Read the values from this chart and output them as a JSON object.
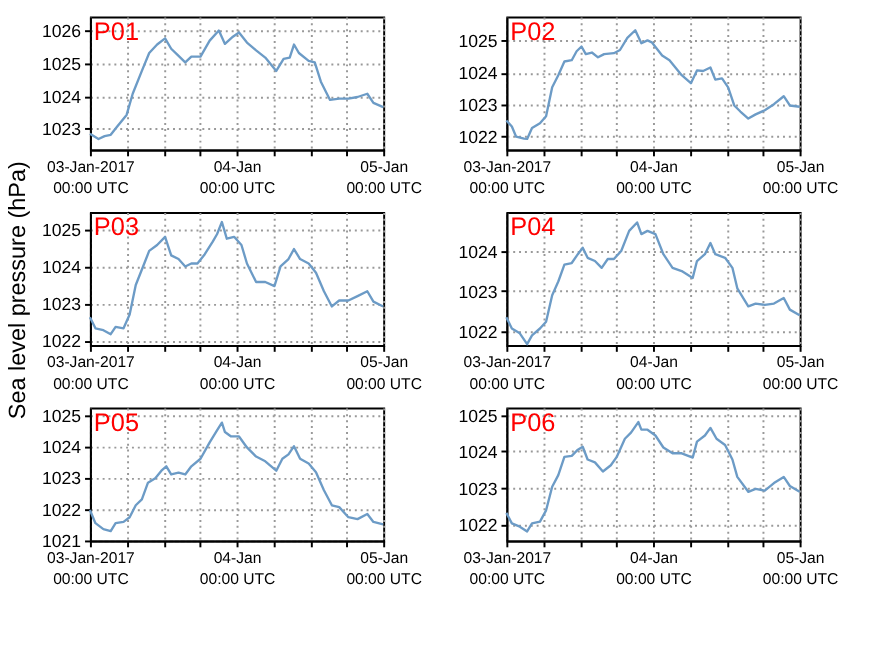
{
  "chart_data": [
    {
      "type": "line",
      "title": "P01",
      "color": "#6c9bc6",
      "grid": true,
      "xlim": [
        "2017-01-03T00:00",
        "2017-01-05T00:00"
      ],
      "ylim": [
        1022.35,
        1026.43
      ],
      "yticks": [
        1023,
        1024,
        1025,
        1026
      ],
      "xticks": [
        {
          "value": "2017-01-03T00:00",
          "label": "03-Jan-2017\n00:00 UTC"
        },
        {
          "value": "2017-01-03T06:00",
          "label": null
        },
        {
          "value": "2017-01-03T12:00",
          "label": null
        },
        {
          "value": "2017-01-03T18:00",
          "label": null
        },
        {
          "value": "2017-01-04T00:00",
          "label": "04-Jan\n00:00 UTC"
        },
        {
          "value": "2017-01-04T06:00",
          "label": null
        },
        {
          "value": "2017-01-04T12:00",
          "label": null
        },
        {
          "value": "2017-01-04T18:00",
          "label": null
        },
        {
          "value": "2017-01-05T00:00",
          "label": "05-Jan\n00:00 UTC"
        }
      ],
      "x": [
        "2017-01-03T00:00",
        "2017-01-03T01:24",
        "2017-01-03T02:24",
        "2017-01-03T03:24",
        "2017-01-03T04:24",
        "2017-01-03T06:00",
        "2017-01-03T07:00",
        "2017-01-03T08:30",
        "2017-01-03T09:42",
        "2017-01-03T11:00",
        "2017-01-03T12:18",
        "2017-01-03T13:18",
        "2017-01-03T14:18",
        "2017-01-03T15:36",
        "2017-01-03T16:36",
        "2017-01-03T18:06",
        "2017-01-03T19:36",
        "2017-01-03T21:06",
        "2017-01-03T22:06",
        "2017-01-03T23:24",
        "2017-01-04T00:24",
        "2017-01-04T01:42",
        "2017-01-04T03:12",
        "2017-01-04T04:42",
        "2017-01-04T06:30",
        "2017-01-04T07:42",
        "2017-01-04T08:42",
        "2017-01-04T09:24",
        "2017-01-04T10:12",
        "2017-01-04T11:48",
        "2017-01-04T12:48",
        "2017-01-04T13:48",
        "2017-01-04T15:18",
        "2017-01-04T16:48",
        "2017-01-04T18:18",
        "2017-01-04T19:48",
        "2017-01-04T21:24",
        "2017-01-04T22:24",
        "2017-01-05T00:00"
      ],
      "values": [
        1022.83,
        1022.67,
        1022.76,
        1022.8,
        1023.04,
        1023.41,
        1024.06,
        1024.76,
        1025.31,
        1025.57,
        1025.76,
        1025.44,
        1025.26,
        1025.02,
        1025.2,
        1025.2,
        1025.69,
        1026.0,
        1025.59,
        1025.81,
        1025.94,
        1025.63,
        1025.39,
        1025.17,
        1024.76,
        1025.13,
        1025.17,
        1025.57,
        1025.31,
        1025.07,
        1025.02,
        1024.43,
        1023.87,
        1023.91,
        1023.91,
        1023.96,
        1024.06,
        1023.78,
        1023.65
      ]
    },
    {
      "type": "line",
      "title": "P02",
      "color": "#6c9bc6",
      "grid": true,
      "xlim": [
        "2017-01-03T00:00",
        "2017-01-05T00:00"
      ],
      "ylim": [
        1021.58,
        1025.75
      ],
      "yticks": [
        1022,
        1023,
        1024,
        1025
      ],
      "xticks": [
        {
          "value": "2017-01-03T00:00",
          "label": "03-Jan-2017\n00:00 UTC"
        },
        {
          "value": "2017-01-03T06:00",
          "label": null
        },
        {
          "value": "2017-01-03T12:00",
          "label": null
        },
        {
          "value": "2017-01-03T18:00",
          "label": null
        },
        {
          "value": "2017-01-04T00:00",
          "label": "04-Jan\n00:00 UTC"
        },
        {
          "value": "2017-01-04T06:00",
          "label": null
        },
        {
          "value": "2017-01-04T12:00",
          "label": null
        },
        {
          "value": "2017-01-04T18:00",
          "label": null
        },
        {
          "value": "2017-01-05T00:00",
          "label": "05-Jan\n00:00 UTC"
        }
      ],
      "x": [
        "2017-01-03T00:00",
        "2017-01-03T00:54",
        "2017-01-03T01:36",
        "2017-01-03T02:54",
        "2017-01-03T03:24",
        "2017-01-03T04:12",
        "2017-01-03T05:30",
        "2017-01-03T06:30",
        "2017-01-03T07:30",
        "2017-01-03T08:30",
        "2017-01-03T09:30",
        "2017-01-03T10:42",
        "2017-01-03T11:30",
        "2017-01-03T12:18",
        "2017-01-03T13:00",
        "2017-01-03T14:00",
        "2017-01-03T15:00",
        "2017-01-03T16:00",
        "2017-01-03T17:36",
        "2017-01-03T18:36",
        "2017-01-03T19:48",
        "2017-01-03T21:06",
        "2017-01-03T22:06",
        "2017-01-03T23:06",
        "2017-01-03T23:48",
        "2017-01-04T01:30",
        "2017-01-04T02:42",
        "2017-01-04T04:42",
        "2017-01-04T06:12",
        "2017-01-04T07:12",
        "2017-01-04T08:12",
        "2017-01-04T09:24",
        "2017-01-04T10:12",
        "2017-01-04T11:18",
        "2017-01-04T12:18",
        "2017-01-04T13:18",
        "2017-01-04T14:18",
        "2017-01-04T15:36",
        "2017-01-04T16:48",
        "2017-01-04T18:18",
        "2017-01-04T19:48",
        "2017-01-04T21:24",
        "2017-01-04T22:24",
        "2017-01-05T00:00"
      ],
      "values": [
        1022.49,
        1022.3,
        1021.98,
        1021.92,
        1021.91,
        1022.25,
        1022.4,
        1022.62,
        1023.53,
        1023.91,
        1024.34,
        1024.38,
        1024.66,
        1024.81,
        1024.57,
        1024.62,
        1024.47,
        1024.57,
        1024.6,
        1024.7,
        1025.08,
        1025.32,
        1024.91,
        1025.0,
        1024.94,
        1024.53,
        1024.38,
        1023.91,
        1023.66,
        1024.06,
        1024.04,
        1024.15,
        1023.77,
        1023.81,
        1023.53,
        1022.96,
        1022.77,
        1022.55,
        1022.68,
        1022.81,
        1023.0,
        1023.25,
        1022.96,
        1022.92
      ]
    },
    {
      "type": "line",
      "title": "P03",
      "ylabel": "Sea level pressure (hPa)",
      "color": "#6c9bc6",
      "grid": true,
      "xlim": [
        "2017-01-03T00:00",
        "2017-01-05T00:00"
      ],
      "ylim": [
        1021.88,
        1025.47
      ],
      "yticks": [
        1022,
        1023,
        1024,
        1025
      ],
      "xticks": [
        {
          "value": "2017-01-03T00:00",
          "label": "03-Jan-2017\n00:00 UTC"
        },
        {
          "value": "2017-01-03T06:00",
          "label": null
        },
        {
          "value": "2017-01-03T12:00",
          "label": null
        },
        {
          "value": "2017-01-03T18:00",
          "label": null
        },
        {
          "value": "2017-01-04T00:00",
          "label": "04-Jan\n00:00 UTC"
        },
        {
          "value": "2017-01-04T06:00",
          "label": null
        },
        {
          "value": "2017-01-04T12:00",
          "label": null
        },
        {
          "value": "2017-01-04T18:00",
          "label": null
        },
        {
          "value": "2017-01-05T00:00",
          "label": "05-Jan\n00:00 UTC"
        }
      ],
      "x": [
        "2017-01-03T00:00",
        "2017-01-03T00:54",
        "2017-01-03T02:12",
        "2017-01-03T03:24",
        "2017-01-03T04:12",
        "2017-01-03T05:30",
        "2017-01-03T06:30",
        "2017-01-03T07:30",
        "2017-01-03T08:42",
        "2017-01-03T09:42",
        "2017-01-03T11:00",
        "2017-01-03T12:18",
        "2017-01-03T13:18",
        "2017-01-03T14:30",
        "2017-01-03T15:36",
        "2017-01-03T16:36",
        "2017-01-03T17:36",
        "2017-01-03T18:48",
        "2017-01-03T20:06",
        "2017-01-03T20:48",
        "2017-01-03T21:36",
        "2017-01-03T22:24",
        "2017-01-03T23:36",
        "2017-01-04T00:48",
        "2017-01-04T01:42",
        "2017-01-04T03:12",
        "2017-01-04T04:42",
        "2017-01-04T06:12",
        "2017-01-04T07:12",
        "2017-01-04T08:30",
        "2017-01-04T09:24",
        "2017-01-04T10:24",
        "2017-01-04T11:48",
        "2017-01-04T13:00",
        "2017-01-04T14:18",
        "2017-01-04T15:36",
        "2017-01-04T16:48",
        "2017-01-04T18:18",
        "2017-01-04T19:48",
        "2017-01-04T21:24",
        "2017-01-04T22:24",
        "2017-01-05T00:00"
      ],
      "values": [
        1022.63,
        1022.33,
        1022.28,
        1022.17,
        1022.37,
        1022.33,
        1022.7,
        1023.5,
        1024.0,
        1024.42,
        1024.58,
        1024.8,
        1024.3,
        1024.2,
        1024.0,
        1024.08,
        1024.08,
        1024.33,
        1024.67,
        1024.87,
        1025.2,
        1024.75,
        1024.8,
        1024.58,
        1024.08,
        1023.58,
        1023.58,
        1023.47,
        1024.0,
        1024.2,
        1024.47,
        1024.2,
        1024.08,
        1023.83,
        1023.33,
        1022.92,
        1023.08,
        1023.08,
        1023.2,
        1023.33,
        1023.05,
        1022.92
      ]
    },
    {
      "type": "line",
      "title": "P04",
      "color": "#6c9bc6",
      "grid": true,
      "xlim": [
        "2017-01-03T00:00",
        "2017-01-05T00:00"
      ],
      "ylim": [
        1021.66,
        1024.97
      ],
      "yticks": [
        1022,
        1023,
        1024
      ],
      "xticks": [
        {
          "value": "2017-01-03T00:00",
          "label": "03-Jan-2017\n00:00 UTC"
        },
        {
          "value": "2017-01-03T06:00",
          "label": null
        },
        {
          "value": "2017-01-03T12:00",
          "label": null
        },
        {
          "value": "2017-01-03T18:00",
          "label": null
        },
        {
          "value": "2017-01-04T00:00",
          "label": "04-Jan\n00:00 UTC"
        },
        {
          "value": "2017-01-04T06:00",
          "label": null
        },
        {
          "value": "2017-01-04T12:00",
          "label": null
        },
        {
          "value": "2017-01-04T18:00",
          "label": null
        },
        {
          "value": "2017-01-05T00:00",
          "label": "05-Jan\n00:00 UTC"
        }
      ],
      "x": [
        "2017-01-03T00:00",
        "2017-01-03T00:54",
        "2017-01-03T02:12",
        "2017-01-03T03:24",
        "2017-01-03T04:12",
        "2017-01-03T05:30",
        "2017-01-03T06:30",
        "2017-01-03T07:30",
        "2017-01-03T08:30",
        "2017-01-03T09:30",
        "2017-01-03T10:42",
        "2017-01-03T11:42",
        "2017-01-03T12:30",
        "2017-01-03T13:18",
        "2017-01-03T14:30",
        "2017-01-03T15:36",
        "2017-01-03T16:36",
        "2017-01-03T17:36",
        "2017-01-03T18:48",
        "2017-01-03T20:06",
        "2017-01-03T21:24",
        "2017-01-03T22:06",
        "2017-01-03T23:06",
        "2017-01-04T00:24",
        "2017-01-04T01:42",
        "2017-01-04T03:12",
        "2017-01-04T04:42",
        "2017-01-04T06:30",
        "2017-01-04T07:12",
        "2017-01-04T08:30",
        "2017-01-04T09:24",
        "2017-01-04T10:12",
        "2017-01-04T11:48",
        "2017-01-04T13:00",
        "2017-01-04T13:48",
        "2017-01-04T15:36",
        "2017-01-04T16:48",
        "2017-01-04T18:18",
        "2017-01-04T19:48",
        "2017-01-04T21:24",
        "2017-01-04T22:24",
        "2017-01-05T00:00"
      ],
      "values": [
        1022.35,
        1022.07,
        1021.95,
        1021.68,
        1021.9,
        1022.07,
        1022.24,
        1022.9,
        1023.24,
        1023.66,
        1023.7,
        1023.92,
        1024.08,
        1023.83,
        1023.75,
        1023.58,
        1023.8,
        1023.8,
        1024.0,
        1024.5,
        1024.71,
        1024.42,
        1024.5,
        1024.42,
        1023.92,
        1023.58,
        1023.5,
        1023.33,
        1023.75,
        1023.92,
        1024.2,
        1023.92,
        1023.83,
        1023.58,
        1023.07,
        1022.62,
        1022.69,
        1022.66,
        1022.69,
        1022.83,
        1022.54,
        1022.4
      ]
    },
    {
      "type": "line",
      "title": "P05",
      "color": "#6c9bc6",
      "grid": true,
      "xlim": [
        "2017-01-03T00:00",
        "2017-01-05T00:00"
      ],
      "ylim": [
        1021.0,
        1025.23
      ],
      "yticks": [
        1021,
        1022,
        1023,
        1024,
        1025
      ],
      "xticks": [
        {
          "value": "2017-01-03T00:00",
          "label": "03-Jan-2017\n00:00 UTC"
        },
        {
          "value": "2017-01-03T06:00",
          "label": null
        },
        {
          "value": "2017-01-03T12:00",
          "label": null
        },
        {
          "value": "2017-01-03T18:00",
          "label": null
        },
        {
          "value": "2017-01-04T00:00",
          "label": "04-Jan\n00:00 UTC"
        },
        {
          "value": "2017-01-04T06:00",
          "label": null
        },
        {
          "value": "2017-01-04T12:00",
          "label": null
        },
        {
          "value": "2017-01-04T18:00",
          "label": null
        },
        {
          "value": "2017-01-05T00:00",
          "label": "05-Jan\n00:00 UTC"
        }
      ],
      "x": [
        "2017-01-03T00:00",
        "2017-01-03T00:54",
        "2017-01-03T02:12",
        "2017-01-03T03:24",
        "2017-01-03T04:12",
        "2017-01-03T05:30",
        "2017-01-03T06:30",
        "2017-01-03T07:30",
        "2017-01-03T08:30",
        "2017-01-03T09:30",
        "2017-01-03T10:42",
        "2017-01-03T11:42",
        "2017-01-03T12:30",
        "2017-01-03T13:18",
        "2017-01-03T14:30",
        "2017-01-03T15:36",
        "2017-01-03T16:36",
        "2017-01-03T18:06",
        "2017-01-03T19:36",
        "2017-01-03T20:48",
        "2017-01-03T21:36",
        "2017-01-03T22:06",
        "2017-01-03T23:06",
        "2017-01-04T00:24",
        "2017-01-04T01:42",
        "2017-01-04T03:12",
        "2017-01-04T04:42",
        "2017-01-04T06:30",
        "2017-01-04T07:30",
        "2017-01-04T08:30",
        "2017-01-04T09:24",
        "2017-01-04T10:24",
        "2017-01-04T11:48",
        "2017-01-04T13:00",
        "2017-01-04T14:18",
        "2017-01-04T15:36",
        "2017-01-04T16:48",
        "2017-01-04T18:18",
        "2017-01-04T19:48",
        "2017-01-04T21:24",
        "2017-01-04T22:24",
        "2017-01-05T00:00"
      ],
      "values": [
        1021.97,
        1021.55,
        1021.36,
        1021.3,
        1021.55,
        1021.59,
        1021.74,
        1022.12,
        1022.31,
        1022.84,
        1022.98,
        1023.22,
        1023.36,
        1023.1,
        1023.16,
        1023.1,
        1023.36,
        1023.6,
        1024.12,
        1024.5,
        1024.75,
        1024.45,
        1024.31,
        1024.31,
        1023.96,
        1023.67,
        1023.52,
        1023.22,
        1023.6,
        1023.74,
        1024.0,
        1023.6,
        1023.45,
        1023.17,
        1022.6,
        1022.12,
        1022.06,
        1021.74,
        1021.68,
        1021.84,
        1021.59,
        1021.51
      ]
    },
    {
      "type": "line",
      "title": "P06",
      "color": "#6c9bc6",
      "grid": true,
      "xlim": [
        "2017-01-03T00:00",
        "2017-01-05T00:00"
      ],
      "ylim": [
        1021.55,
        1025.21
      ],
      "yticks": [
        1022,
        1023,
        1024,
        1025
      ],
      "xticks": [
        {
          "value": "2017-01-03T00:00",
          "label": "03-Jan-2017\n00:00 UTC"
        },
        {
          "value": "2017-01-03T06:00",
          "label": null
        },
        {
          "value": "2017-01-03T12:00",
          "label": null
        },
        {
          "value": "2017-01-03T18:00",
          "label": null
        },
        {
          "value": "2017-01-04T00:00",
          "label": "04-Jan\n00:00 UTC"
        },
        {
          "value": "2017-01-04T06:00",
          "label": null
        },
        {
          "value": "2017-01-04T12:00",
          "label": null
        },
        {
          "value": "2017-01-04T18:00",
          "label": null
        },
        {
          "value": "2017-01-05T00:00",
          "label": "05-Jan\n00:00 UTC"
        }
      ],
      "x": [
        "2017-01-03T00:00",
        "2017-01-03T00:54",
        "2017-01-03T02:12",
        "2017-01-03T03:24",
        "2017-01-03T04:12",
        "2017-01-03T05:30",
        "2017-01-03T06:30",
        "2017-01-03T07:30",
        "2017-01-03T08:30",
        "2017-01-03T09:30",
        "2017-01-03T10:42",
        "2017-01-03T11:42",
        "2017-01-03T12:30",
        "2017-01-03T13:18",
        "2017-01-03T14:30",
        "2017-01-03T15:48",
        "2017-01-03T17:06",
        "2017-01-03T18:06",
        "2017-01-03T19:24",
        "2017-01-03T20:24",
        "2017-01-03T21:36",
        "2017-01-03T22:06",
        "2017-01-03T23:06",
        "2017-01-04T00:24",
        "2017-01-04T01:42",
        "2017-01-04T03:12",
        "2017-01-04T04:42",
        "2017-01-04T06:30",
        "2017-01-04T07:12",
        "2017-01-04T08:30",
        "2017-01-04T09:24",
        "2017-01-04T10:24",
        "2017-01-04T11:48",
        "2017-01-04T13:00",
        "2017-01-04T13:48",
        "2017-01-04T15:36",
        "2017-01-04T16:48",
        "2017-01-04T18:18",
        "2017-01-04T19:48",
        "2017-01-04T21:24",
        "2017-01-04T22:24",
        "2017-01-05T00:00"
      ],
      "values": [
        1022.31,
        1022.02,
        1021.93,
        1021.8,
        1022.02,
        1022.07,
        1022.38,
        1023.03,
        1023.35,
        1023.85,
        1023.88,
        1024.05,
        1024.13,
        1023.78,
        1023.7,
        1023.45,
        1023.62,
        1023.86,
        1024.35,
        1024.52,
        1024.81,
        1024.6,
        1024.6,
        1024.44,
        1024.11,
        1023.95,
        1023.95,
        1023.83,
        1024.27,
        1024.44,
        1024.65,
        1024.35,
        1024.18,
        1023.78,
        1023.3,
        1022.89,
        1022.97,
        1022.92,
        1023.13,
        1023.3,
        1023.05,
        1022.89
      ]
    }
  ]
}
